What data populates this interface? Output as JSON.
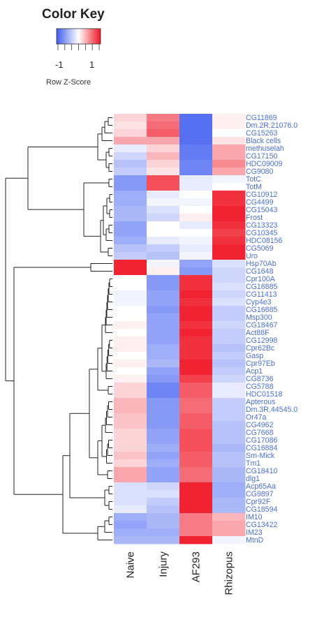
{
  "chart_data": {
    "type": "heatmap",
    "title": "",
    "color_key": {
      "title": "Color Key",
      "label": "Row Z-Score",
      "tick_labels": [
        "-1",
        "1"
      ],
      "tick_values": [
        -1,
        1
      ],
      "range": [
        -1.6,
        1.6
      ],
      "colors": {
        "low": "#3f5cf0",
        "mid": "#ffffff",
        "high": "#f01424"
      }
    },
    "columns": [
      "Naive",
      "Injury",
      "AF293",
      "Rhizopus"
    ],
    "rows": [
      "CG11869",
      "Dm.2R.21076.0",
      "CG15263",
      "Black cells",
      "methuselah",
      "CG17150",
      "HDC09009",
      "CG9080",
      "TotC",
      "TotM",
      "CG10912",
      "CG4499",
      "CG15043",
      "Frost",
      "CG13323",
      "CG10345",
      "HDC08156",
      "CG5069",
      "Uro",
      "Hsp70Ab",
      "CG1648",
      "Cpr100A",
      "CG16885",
      "CG11413",
      "Cyp4e3",
      "CG16885",
      "Msp300",
      "CG18467",
      "Act88F",
      "CG12998",
      "Cpr62Bc",
      "Gasp",
      "Cpr97Eb",
      "Acp1",
      "CG8736",
      "CG5788",
      "HDC01518",
      "Apterous",
      "Dm.3R.44545.0",
      "Or47a",
      "CG4962",
      "CG7668",
      "CG17086",
      "CG16884",
      "Sm-Mick",
      "Tm1",
      "CG18410",
      "dlg1",
      "Acp65Aa",
      "CG9897",
      "Cpr92F",
      "CG18594",
      "IM10",
      "CG13422",
      "IM23",
      "MtnD"
    ],
    "values": [
      [
        0.3,
        0.9,
        -1.4,
        0.1
      ],
      [
        0.2,
        1.0,
        -1.4,
        0.1
      ],
      [
        0.3,
        1.1,
        -1.4,
        0.0
      ],
      [
        0.6,
        0.6,
        -1.4,
        0.2
      ],
      [
        -0.2,
        0.3,
        -1.3,
        0.6
      ],
      [
        -0.4,
        0.5,
        -1.3,
        0.6
      ],
      [
        -0.6,
        0.3,
        -1.2,
        0.8
      ],
      [
        -0.5,
        0.2,
        -1.2,
        0.6
      ],
      [
        -1.0,
        1.2,
        -0.2,
        -0.1
      ],
      [
        -1.0,
        1.2,
        -0.2,
        0.0
      ],
      [
        -0.8,
        -0.2,
        0.0,
        1.4
      ],
      [
        -0.8,
        -0.1,
        -0.1,
        1.4
      ],
      [
        -0.7,
        -0.3,
        0.0,
        1.5
      ],
      [
        -0.7,
        -0.4,
        0.1,
        1.5
      ],
      [
        -0.9,
        0.0,
        -0.2,
        1.4
      ],
      [
        -0.9,
        0.0,
        0.0,
        1.3
      ],
      [
        -0.8,
        -0.2,
        -0.1,
        1.4
      ],
      [
        -0.6,
        -0.5,
        -0.2,
        1.5
      ],
      [
        -0.5,
        -0.6,
        -0.1,
        1.5
      ],
      [
        1.5,
        -0.1,
        -0.9,
        -0.3
      ],
      [
        1.5,
        0.1,
        -1.0,
        -0.4
      ],
      [
        0.0,
        -1.0,
        1.4,
        -0.4
      ],
      [
        0.0,
        -1.0,
        1.4,
        -0.3
      ],
      [
        -0.1,
        -0.9,
        1.5,
        -0.4
      ],
      [
        -0.1,
        -0.9,
        1.4,
        -0.3
      ],
      [
        0.0,
        -1.0,
        1.5,
        -0.5
      ],
      [
        0.0,
        -0.9,
        1.5,
        -0.5
      ],
      [
        0.1,
        -0.9,
        1.4,
        -0.4
      ],
      [
        0.0,
        -0.9,
        1.5,
        -0.5
      ],
      [
        0.1,
        -0.9,
        1.4,
        -0.5
      ],
      [
        0.1,
        -0.8,
        1.4,
        -0.6
      ],
      [
        0.0,
        -0.8,
        1.4,
        -0.5
      ],
      [
        0.1,
        -0.7,
        1.5,
        -0.6
      ],
      [
        0.0,
        -0.9,
        1.5,
        -0.5
      ],
      [
        0.1,
        -1.0,
        1.3,
        -0.4
      ],
      [
        0.3,
        -1.2,
        1.1,
        -0.2
      ],
      [
        0.3,
        -1.2,
        1.1,
        -0.2
      ],
      [
        0.5,
        -1.0,
        1.0,
        -0.5
      ],
      [
        0.5,
        -1.0,
        1.0,
        -0.5
      ],
      [
        0.4,
        -1.0,
        1.1,
        -0.5
      ],
      [
        0.4,
        -1.0,
        1.1,
        -0.6
      ],
      [
        0.3,
        -0.9,
        1.2,
        -0.6
      ],
      [
        0.3,
        -0.9,
        1.2,
        -0.6
      ],
      [
        0.3,
        -0.8,
        1.2,
        -0.7
      ],
      [
        0.4,
        -0.9,
        1.1,
        -0.6
      ],
      [
        0.3,
        -0.8,
        1.1,
        -0.6
      ],
      [
        0.6,
        -0.9,
        1.0,
        -0.7
      ],
      [
        0.6,
        -0.9,
        1.0,
        -0.7
      ],
      [
        -0.3,
        -0.4,
        1.5,
        -0.8
      ],
      [
        -0.3,
        -0.3,
        1.5,
        -0.8
      ],
      [
        -0.3,
        -0.5,
        1.5,
        -0.7
      ],
      [
        -0.2,
        -0.6,
        1.5,
        -0.7
      ],
      [
        -0.8,
        -0.7,
        0.9,
        0.5
      ],
      [
        -0.9,
        -0.7,
        0.9,
        0.6
      ],
      [
        -0.8,
        -0.8,
        0.9,
        0.6
      ],
      [
        -0.7,
        -0.7,
        1.5,
        -0.1
      ]
    ],
    "row_dendrogram": true,
    "grid": false
  }
}
